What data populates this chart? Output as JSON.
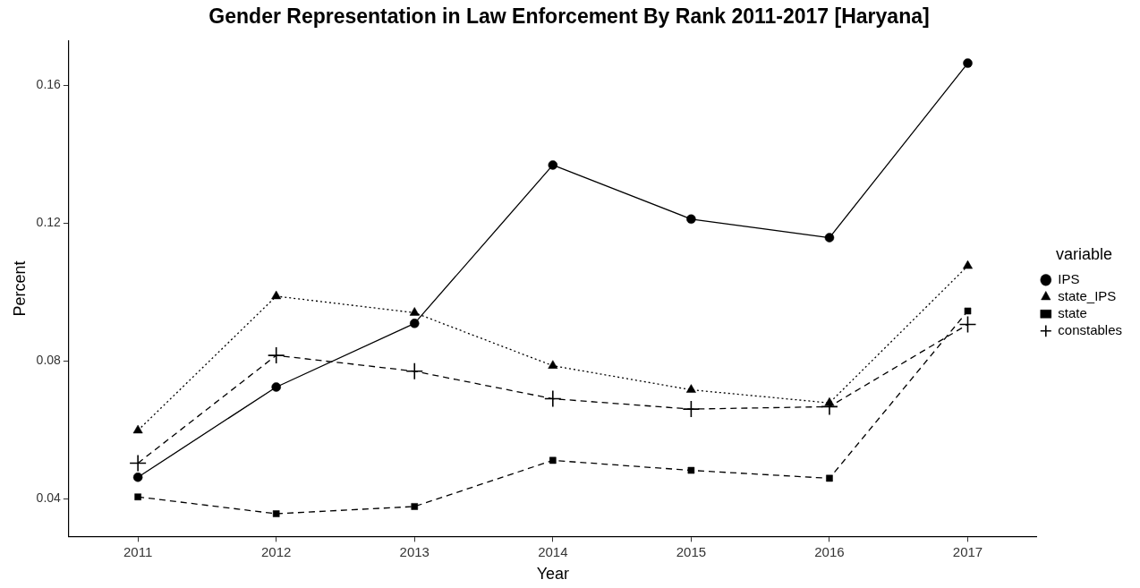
{
  "chart_data": {
    "type": "line",
    "title": "Gender Representation in Law Enforcement By Rank 2011-2017 [Haryana]",
    "xlabel": "Year",
    "ylabel": "Percent",
    "legend_title": "variable",
    "legend": "right",
    "grid": false,
    "categories": [
      "2011",
      "2012",
      "2013",
      "2014",
      "2015",
      "2016",
      "2017"
    ],
    "ylim": [
      0.029,
      0.173
    ],
    "yticks": [
      0.04,
      0.08,
      0.12,
      0.16
    ],
    "series": [
      {
        "name": "IPS",
        "color": "#000000",
        "marker": "circle",
        "line_style": "solid",
        "values": [
          0.0462,
          0.0724,
          0.0909,
          0.1369,
          0.1212,
          0.1158,
          0.1665
        ]
      },
      {
        "name": "state_IPS",
        "color": "#000000",
        "marker": "triangle",
        "line_style": "dotted",
        "values": [
          0.0598,
          0.0988,
          0.094,
          0.0786,
          0.0716,
          0.0678,
          0.1076
        ]
      },
      {
        "name": "state",
        "color": "#000000",
        "marker": "square",
        "line_style": "dashed",
        "values": [
          0.0405,
          0.0356,
          0.0377,
          0.0511,
          0.0482,
          0.0459,
          0.0945
        ]
      },
      {
        "name": "constables",
        "color": "#000000",
        "marker": "cross",
        "line_style": "dashed",
        "values": [
          0.0503,
          0.0816,
          0.077,
          0.069,
          0.066,
          0.0667,
          0.0906
        ]
      }
    ]
  }
}
